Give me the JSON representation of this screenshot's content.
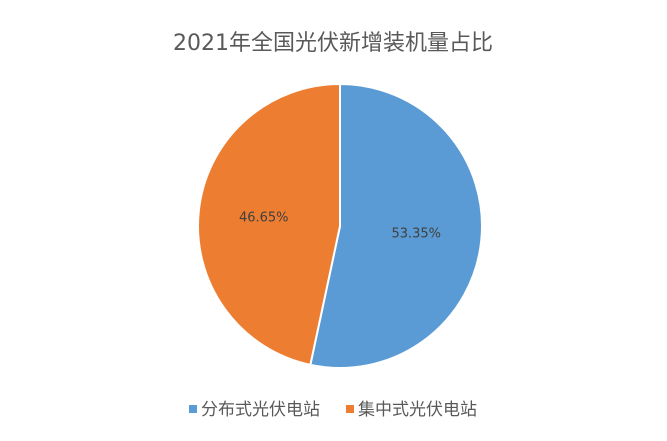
{
  "chart_data": {
    "type": "pie",
    "title": "2021年全国光伏新增装机量占比",
    "categories": [
      "分布式光伏电站",
      "集中式光伏电站"
    ],
    "values": [
      53.35,
      46.65
    ],
    "value_labels": [
      "53.35%",
      "46.65%"
    ],
    "colors": [
      "#5b9bd5",
      "#ed7d31"
    ],
    "legend": "bottom"
  }
}
